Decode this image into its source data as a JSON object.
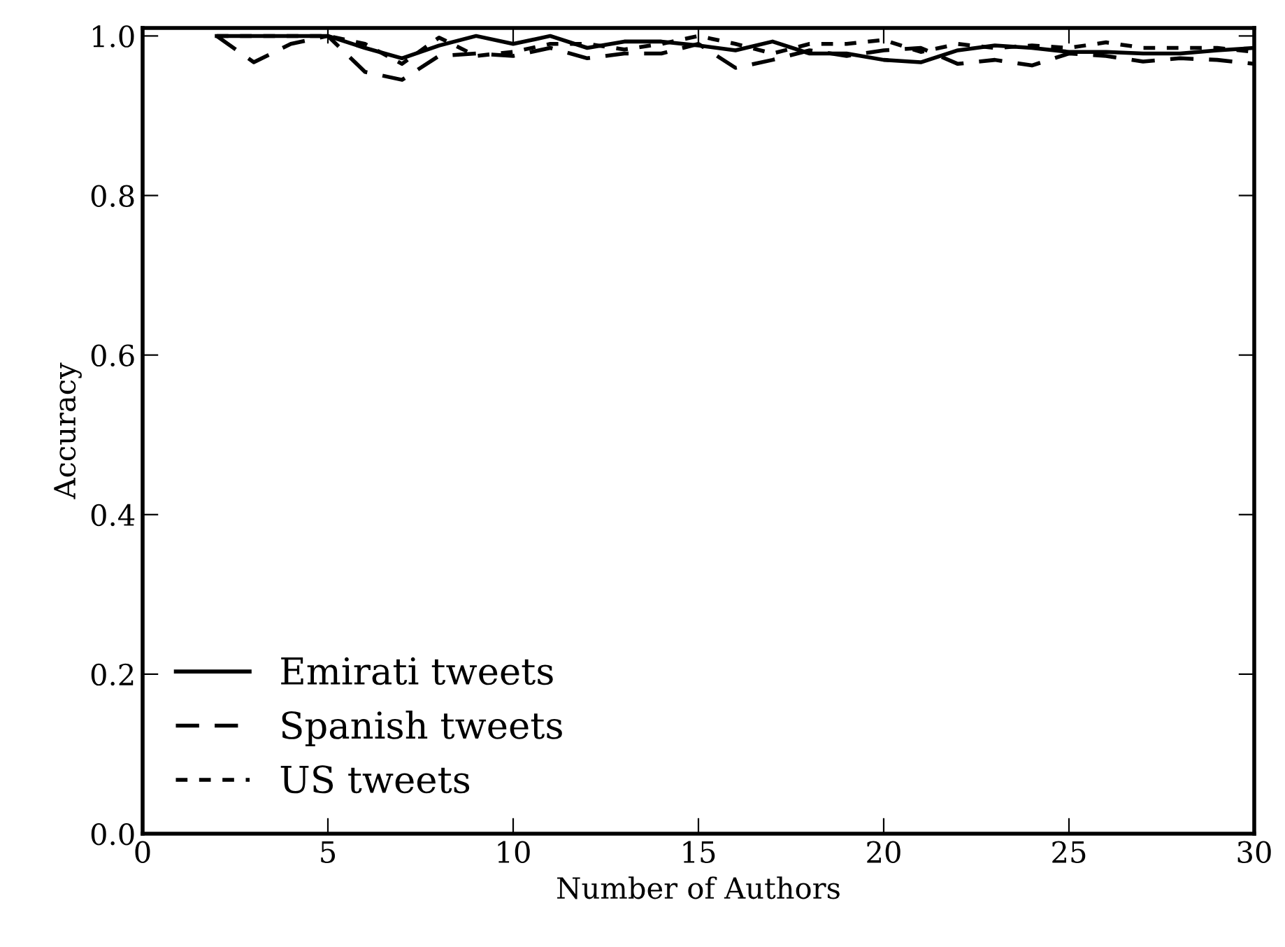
{
  "chart_data": {
    "type": "line",
    "xlabel": "Number of Authors",
    "ylabel": "Accuracy",
    "x": [
      2,
      3,
      4,
      5,
      6,
      7,
      8,
      9,
      10,
      11,
      12,
      13,
      14,
      15,
      16,
      17,
      18,
      19,
      20,
      21,
      22,
      23,
      24,
      25,
      26,
      27,
      28,
      29,
      30
    ],
    "series": [
      {
        "name": "Emirati tweets",
        "color": "#000000",
        "line_style": "solid",
        "values": [
          1.0,
          1.0,
          1.0,
          1.0,
          0.985,
          0.972,
          0.988,
          1.0,
          0.99,
          1.0,
          0.985,
          0.993,
          0.993,
          0.988,
          0.982,
          0.993,
          0.978,
          0.978,
          0.97,
          0.967,
          0.982,
          0.988,
          0.985,
          0.98,
          0.98,
          0.978,
          0.978,
          0.982,
          0.985
        ]
      },
      {
        "name": "Spanish tweets",
        "color": "#000000",
        "line_style": "dashed",
        "values": [
          1.0,
          0.967,
          0.99,
          1.0,
          0.955,
          0.945,
          0.975,
          0.978,
          0.975,
          0.985,
          0.972,
          0.978,
          0.978,
          0.99,
          0.96,
          0.97,
          0.982,
          0.975,
          0.982,
          0.985,
          0.965,
          0.97,
          0.963,
          0.978,
          0.975,
          0.968,
          0.972,
          0.97,
          0.965
        ]
      },
      {
        "name": "US tweets",
        "color": "#000000",
        "line_style": "dotted",
        "values": [
          1.0,
          1.0,
          1.0,
          1.0,
          0.99,
          0.965,
          0.998,
          0.975,
          0.98,
          0.99,
          0.99,
          0.983,
          0.99,
          1.0,
          0.99,
          0.978,
          0.99,
          0.99,
          0.995,
          0.98,
          0.99,
          0.985,
          0.988,
          0.985,
          0.992,
          0.985,
          0.985,
          0.985,
          0.98
        ]
      }
    ],
    "xlim": [
      0,
      30
    ],
    "xticks": [
      0,
      5,
      10,
      15,
      20,
      25,
      30
    ],
    "ylim": [
      0,
      1.01
    ],
    "yticks": [
      {
        "value": 0,
        "label": "0.0"
      },
      {
        "value": 0.2,
        "label": "0.2"
      },
      {
        "value": 0.4,
        "label": "0.4"
      },
      {
        "value": 0.6,
        "label": "0.6"
      },
      {
        "value": 0.8,
        "label": "0.8"
      },
      {
        "value": 1.0,
        "label": "1.0"
      }
    ],
    "grid": false,
    "legend": "bottom left",
    "marker": "none"
  }
}
